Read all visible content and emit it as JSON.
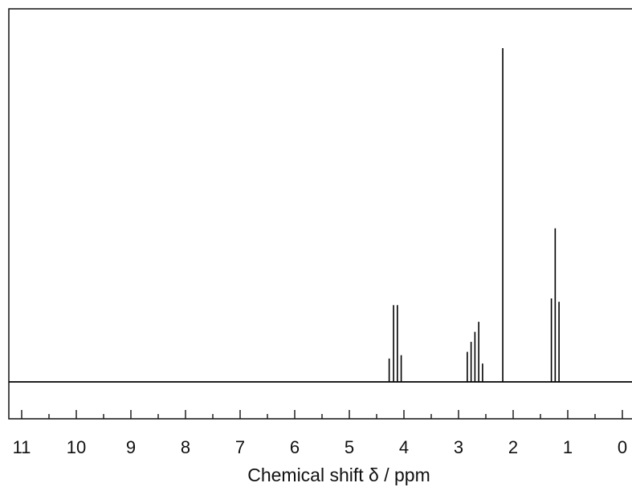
{
  "chart_data": {
    "type": "line",
    "title": "",
    "xlabel": "Chemical shift δ / ppm",
    "ylabel": "",
    "xlim": [
      11.05,
      0
    ],
    "ylim": [
      0,
      100
    ],
    "x_reversed": true,
    "grid": false,
    "legend": "none",
    "line_color": "#000000",
    "x_ticks": [
      11,
      10,
      9,
      8,
      7,
      6,
      5,
      4,
      3,
      2,
      1,
      0
    ],
    "x_tick_labels": [
      "11",
      "10",
      "9",
      "8",
      "7",
      "6",
      "5",
      "4",
      "3",
      "2",
      "1",
      "0"
    ],
    "series": [
      {
        "peaks": [
          {
            "x": 4.27,
            "y": 7
          },
          {
            "x": 4.19,
            "y": 23
          },
          {
            "x": 4.12,
            "y": 23
          },
          {
            "x": 4.05,
            "y": 8
          },
          {
            "x": 2.84,
            "y": 9
          },
          {
            "x": 2.77,
            "y": 12
          },
          {
            "x": 2.7,
            "y": 15
          },
          {
            "x": 2.63,
            "y": 18
          },
          {
            "x": 2.56,
            "y": 5.5
          },
          {
            "x": 2.19,
            "y": 100
          },
          {
            "x": 1.3,
            "y": 25
          },
          {
            "x": 1.23,
            "y": 46
          },
          {
            "x": 1.16,
            "y": 24
          }
        ]
      }
    ]
  }
}
